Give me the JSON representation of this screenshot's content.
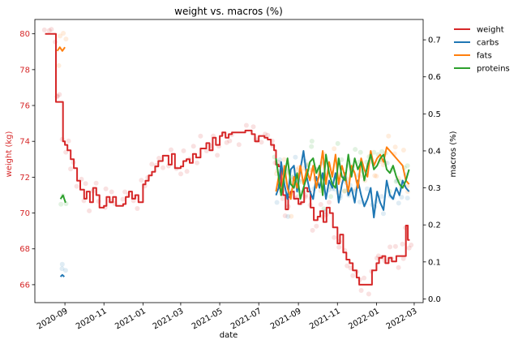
{
  "chart_data": {
    "type": "line",
    "title": "weight vs. macros (%)",
    "xlabel": "date",
    "ylabel_left": "weight (kg)",
    "ylabel_right": "macros (%)",
    "x_range": [
      "2020-07-16",
      "2022-03-15"
    ],
    "ylim_left": [
      65.0,
      80.8
    ],
    "ylim_right": [
      -0.01,
      0.755
    ],
    "left_ticks": [
      "66",
      "68",
      "70",
      "72",
      "74",
      "76",
      "78",
      "80"
    ],
    "right_ticks": [
      "0.0",
      "0.1",
      "0.2",
      "0.3",
      "0.4",
      "0.5",
      "0.6",
      "0.7"
    ],
    "x_ticks": [
      "2020-09",
      "2020-11",
      "2021-01",
      "2021-03",
      "2021-05",
      "2021-07",
      "2021-09",
      "2021-11",
      "2022-01",
      "2022-03"
    ],
    "grid": false,
    "legend_position": "outside upper right",
    "colors": {
      "weight": "#d62728",
      "carbs": "#1f77b4",
      "fats": "#ff7f0e",
      "proteins": "#2ca02c",
      "left_axis_text": "#d62728"
    },
    "series": [
      {
        "name": "weight",
        "axis": "left",
        "x": [
          "2020-08-01",
          "2020-08-05",
          "2020-08-10",
          "2020-08-15",
          "2020-08-18",
          "2020-08-21",
          "2020-08-25",
          "2020-08-29",
          "2020-09-01",
          "2020-09-05",
          "2020-09-10",
          "2020-09-15",
          "2020-09-20",
          "2020-09-25",
          "2020-10-01",
          "2020-10-05",
          "2020-10-10",
          "2020-10-15",
          "2020-10-20",
          "2020-10-25",
          "2020-11-01",
          "2020-11-05",
          "2020-11-10",
          "2020-11-15",
          "2020-11-20",
          "2020-12-01",
          "2020-12-05",
          "2020-12-10",
          "2020-12-15",
          "2020-12-20",
          "2020-12-25",
          "2021-01-01",
          "2021-01-05",
          "2021-01-10",
          "2021-01-15",
          "2021-01-20",
          "2021-01-25",
          "2021-02-01",
          "2021-02-10",
          "2021-02-15",
          "2021-02-20",
          "2021-03-01",
          "2021-03-05",
          "2021-03-10",
          "2021-03-15",
          "2021-03-20",
          "2021-03-25",
          "2021-04-01",
          "2021-04-10",
          "2021-04-15",
          "2021-04-20",
          "2021-04-25",
          "2021-05-01",
          "2021-05-05",
          "2021-05-10",
          "2021-05-15",
          "2021-05-20",
          "2021-06-01",
          "2021-06-10",
          "2021-06-20",
          "2021-06-25",
          "2021-07-01",
          "2021-07-05",
          "2021-07-10",
          "2021-07-15",
          "2021-07-20",
          "2021-07-25",
          "2021-07-28",
          "2021-08-01",
          "2021-08-05",
          "2021-08-08",
          "2021-08-12",
          "2021-08-16",
          "2021-08-20",
          "2021-08-25",
          "2021-09-01",
          "2021-09-05",
          "2021-09-10",
          "2021-09-15",
          "2021-09-20",
          "2021-09-25",
          "2021-10-01",
          "2021-10-05",
          "2021-10-10",
          "2021-10-15",
          "2021-10-20",
          "2021-10-25",
          "2021-11-01",
          "2021-11-05",
          "2021-11-10",
          "2021-11-15",
          "2021-11-20",
          "2021-11-25",
          "2021-12-01",
          "2021-12-05",
          "2021-12-10",
          "2021-12-15",
          "2021-12-20",
          "2021-12-25",
          "2022-01-01",
          "2022-01-05",
          "2022-01-10",
          "2022-01-15",
          "2022-01-20",
          "2022-01-25",
          "2022-02-01",
          "2022-02-05",
          "2022-02-10",
          "2022-02-13",
          "2022-02-16",
          "2022-02-19",
          "2022-02-22"
        ],
        "values": [
          80.0,
          80.0,
          80.0,
          80.0,
          76.2,
          76.2,
          76.2,
          74.0,
          73.8,
          73.5,
          73.0,
          72.5,
          71.8,
          71.3,
          70.8,
          71.2,
          70.6,
          71.4,
          71.0,
          70.3,
          70.4,
          70.9,
          70.6,
          70.9,
          70.4,
          70.5,
          70.9,
          71.2,
          70.8,
          71.0,
          70.6,
          71.6,
          71.8,
          72.1,
          72.3,
          72.6,
          72.9,
          73.2,
          72.7,
          73.3,
          72.5,
          72.6,
          72.9,
          73.0,
          72.8,
          73.3,
          73.1,
          73.6,
          73.9,
          73.5,
          74.2,
          73.8,
          74.3,
          74.5,
          74.2,
          74.4,
          74.5,
          74.5,
          74.6,
          74.4,
          74.0,
          74.3,
          74.3,
          74.2,
          74.1,
          73.8,
          73.5,
          72.7,
          72.6,
          71.5,
          71.0,
          70.2,
          70.9,
          71.2,
          70.8,
          70.5,
          70.6,
          71.4,
          71.2,
          70.3,
          69.6,
          69.8,
          70.1,
          69.5,
          70.3,
          70.0,
          69.2,
          68.3,
          68.8,
          67.8,
          67.4,
          67.2,
          66.8,
          66.4,
          66.0,
          66.0,
          66.0,
          66.0,
          66.8,
          67.2,
          67.5,
          67.6,
          67.2,
          67.5,
          67.3,
          67.6,
          67.6,
          67.6,
          67.6,
          69.3,
          68.5,
          68.5
        ]
      },
      {
        "name": "carbs",
        "axis": "right",
        "x": [
          "2020-08-25",
          "2020-08-28",
          "2020-08-31",
          "2021-07-28",
          "2021-08-01",
          "2021-08-05",
          "2021-08-10",
          "2021-08-15",
          "2021-08-20",
          "2021-08-25",
          "2021-08-30",
          "2021-09-04",
          "2021-09-09",
          "2021-09-14",
          "2021-09-19",
          "2021-09-24",
          "2021-09-29",
          "2021-10-04",
          "2021-10-09",
          "2021-10-14",
          "2021-10-19",
          "2021-10-24",
          "2021-10-29",
          "2021-11-03",
          "2021-11-08",
          "2021-11-13",
          "2021-11-18",
          "2021-11-23",
          "2021-11-28",
          "2021-12-03",
          "2021-12-08",
          "2021-12-13",
          "2021-12-18",
          "2021-12-23",
          "2021-12-28",
          "2022-01-02",
          "2022-01-07",
          "2022-01-12",
          "2022-01-17",
          "2022-01-22",
          "2022-01-27",
          "2022-02-01",
          "2022-02-06",
          "2022-02-11",
          "2022-02-16",
          "2022-02-21"
        ],
        "values": [
          0.06,
          0.065,
          0.06,
          0.28,
          0.3,
          0.37,
          0.31,
          0.27,
          0.35,
          0.36,
          0.29,
          0.35,
          0.4,
          0.33,
          0.29,
          0.27,
          0.33,
          0.3,
          0.34,
          0.27,
          0.32,
          0.3,
          0.34,
          0.26,
          0.31,
          0.34,
          0.28,
          0.3,
          0.26,
          0.32,
          0.28,
          0.25,
          0.27,
          0.3,
          0.22,
          0.29,
          0.26,
          0.24,
          0.32,
          0.28,
          0.27,
          0.3,
          0.28,
          0.32,
          0.3,
          0.29
        ]
      },
      {
        "name": "fats",
        "axis": "right",
        "x": [
          "2020-08-20",
          "2020-08-24",
          "2020-08-28",
          "2020-09-01",
          "2021-07-28",
          "2021-08-01",
          "2021-08-05",
          "2021-08-10",
          "2021-08-15",
          "2021-08-20",
          "2021-08-25",
          "2021-08-30",
          "2021-09-04",
          "2021-09-09",
          "2021-09-14",
          "2021-09-19",
          "2021-09-24",
          "2021-09-29",
          "2021-10-04",
          "2021-10-09",
          "2021-10-14",
          "2021-10-19",
          "2021-10-24",
          "2021-10-29",
          "2021-11-03",
          "2021-11-08",
          "2021-11-13",
          "2021-11-18",
          "2021-11-23",
          "2021-11-28",
          "2021-12-03",
          "2021-12-08",
          "2021-12-13",
          "2021-12-18",
          "2021-12-23",
          "2021-12-28",
          "2022-01-02",
          "2022-01-07",
          "2022-01-12",
          "2022-01-17",
          "2022-01-22",
          "2022-01-27",
          "2022-02-01",
          "2022-02-06",
          "2022-02-11",
          "2022-02-16",
          "2022-02-21"
        ],
        "values": [
          0.67,
          0.68,
          0.67,
          0.68,
          0.29,
          0.33,
          0.28,
          0.36,
          0.3,
          0.27,
          0.33,
          0.3,
          0.36,
          0.31,
          0.35,
          0.32,
          0.36,
          0.3,
          0.34,
          0.4,
          0.31,
          0.37,
          0.33,
          0.39,
          0.31,
          0.36,
          0.33,
          0.29,
          0.36,
          0.34,
          0.3,
          0.38,
          0.35,
          0.33,
          0.4,
          0.36,
          0.38,
          0.39,
          0.37,
          0.41,
          0.4,
          0.39,
          0.38,
          0.37,
          0.36,
          0.32,
          0.31
        ]
      },
      {
        "name": "proteins",
        "axis": "right",
        "x": [
          "2020-08-25",
          "2020-08-29",
          "2020-09-02",
          "2021-07-28",
          "2021-08-01",
          "2021-08-05",
          "2021-08-10",
          "2021-08-15",
          "2021-08-20",
          "2021-08-25",
          "2021-08-30",
          "2021-09-04",
          "2021-09-09",
          "2021-09-14",
          "2021-09-19",
          "2021-09-24",
          "2021-09-29",
          "2021-10-04",
          "2021-10-09",
          "2021-10-14",
          "2021-10-19",
          "2021-10-24",
          "2021-10-29",
          "2021-11-03",
          "2021-11-08",
          "2021-11-13",
          "2021-11-18",
          "2021-11-23",
          "2021-11-28",
          "2021-12-03",
          "2021-12-08",
          "2021-12-13",
          "2021-12-18",
          "2021-12-23",
          "2021-12-28",
          "2022-01-02",
          "2022-01-07",
          "2022-01-12",
          "2022-01-17",
          "2022-01-22",
          "2022-01-27",
          "2022-02-01",
          "2022-02-06",
          "2022-02-11",
          "2022-02-16",
          "2022-02-21"
        ],
        "values": [
          0.27,
          0.28,
          0.26,
          0.38,
          0.33,
          0.28,
          0.33,
          0.38,
          0.31,
          0.3,
          0.34,
          0.27,
          0.3,
          0.33,
          0.37,
          0.38,
          0.34,
          0.36,
          0.28,
          0.39,
          0.34,
          0.31,
          0.3,
          0.38,
          0.33,
          0.32,
          0.39,
          0.33,
          0.38,
          0.35,
          0.37,
          0.32,
          0.36,
          0.39,
          0.35,
          0.36,
          0.38,
          0.39,
          0.35,
          0.34,
          0.36,
          0.33,
          0.31,
          0.3,
          0.32,
          0.35
        ]
      }
    ]
  }
}
